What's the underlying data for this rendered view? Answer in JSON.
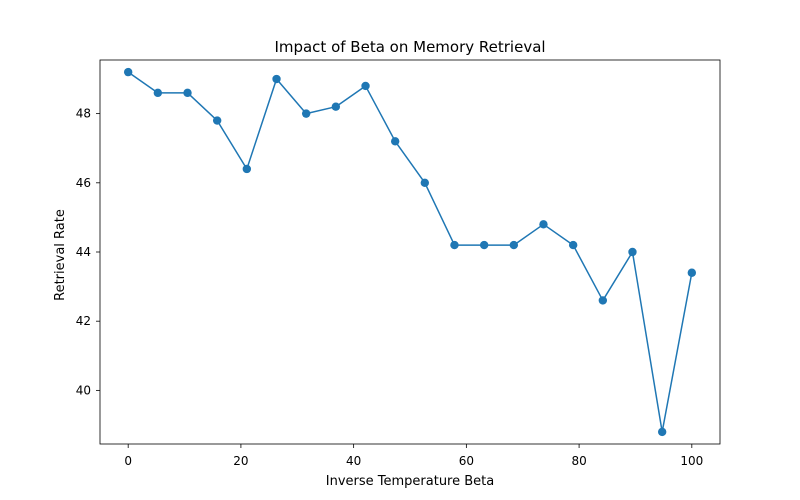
{
  "chart_data": {
    "type": "line",
    "title": "Impact of Beta on Memory Retrieval",
    "xlabel": "Inverse Temperature Beta",
    "ylabel": "Retrieval Rate",
    "xlim": [
      -5,
      105
    ],
    "ylim": [
      38.45,
      49.55
    ],
    "xticks": [
      0,
      20,
      40,
      60,
      80,
      100
    ],
    "yticks": [
      40,
      42,
      44,
      46,
      48
    ],
    "grid": false,
    "series": [
      {
        "color": "#1f77b4",
        "marker": "circle",
        "x": [
          0,
          5.26,
          10.53,
          15.79,
          21.05,
          26.32,
          31.58,
          36.84,
          42.11,
          47.37,
          52.63,
          57.89,
          63.16,
          68.42,
          73.68,
          78.95,
          84.21,
          89.47,
          94.74,
          100
        ],
        "y": [
          49.2,
          48.6,
          48.6,
          47.8,
          46.4,
          49.0,
          48.0,
          48.2,
          48.8,
          47.2,
          46.0,
          44.2,
          44.2,
          44.2,
          44.8,
          44.2,
          42.6,
          44.0,
          38.8,
          43.4
        ]
      }
    ]
  }
}
